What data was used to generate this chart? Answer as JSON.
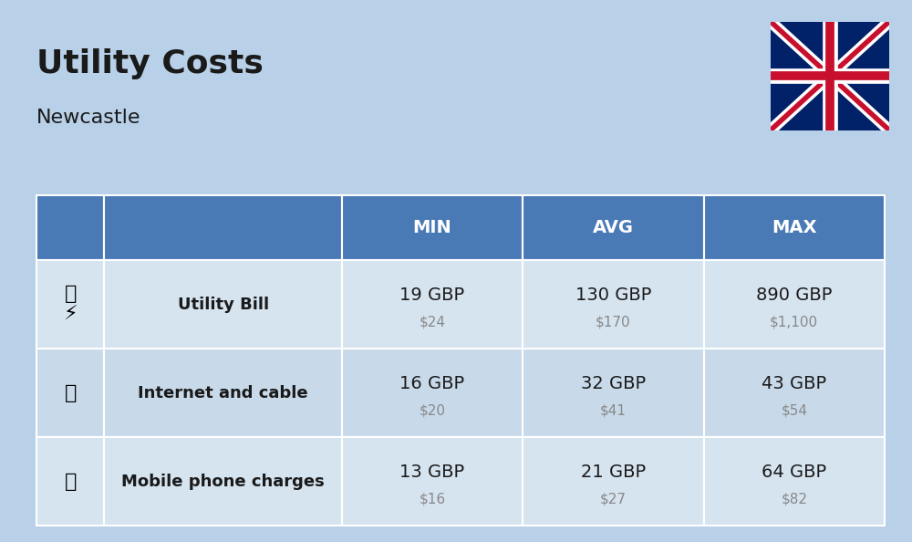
{
  "title": "Utility Costs",
  "subtitle": "Newcastle",
  "bg_color": "#b8d0e8",
  "header_color": "#4a7ab5",
  "row_colors": [
    "#d6e4f0",
    "#c8daea"
  ],
  "header_text_color": "#ffffff",
  "category_text_color": "#1a1a1a",
  "value_text_color": "#1a1a1a",
  "subvalue_text_color": "#888888",
  "col_headers": [
    "MIN",
    "AVG",
    "MAX"
  ],
  "rows": [
    {
      "label": "Utility Bill",
      "min_gbp": "19 GBP",
      "min_usd": "$24",
      "avg_gbp": "130 GBP",
      "avg_usd": "$170",
      "max_gbp": "890 GBP",
      "max_usd": "$1,100"
    },
    {
      "label": "Internet and cable",
      "min_gbp": "16 GBP",
      "min_usd": "$20",
      "avg_gbp": "32 GBP",
      "avg_usd": "$41",
      "max_gbp": "43 GBP",
      "max_usd": "$54"
    },
    {
      "label": "Mobile phone charges",
      "min_gbp": "13 GBP",
      "min_usd": "$16",
      "avg_gbp": "21 GBP",
      "avg_usd": "$27",
      "max_gbp": "64 GBP",
      "max_usd": "$82"
    }
  ],
  "icon_utility": "⚡",
  "icon_internet": "📶",
  "icon_mobile": "📱",
  "flag_colors": {
    "blue": "#012169",
    "red": "#C8102E",
    "white": "#FFFFFF"
  }
}
